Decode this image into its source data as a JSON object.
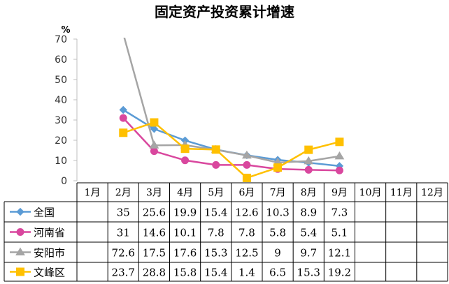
{
  "chart_data": {
    "type": "line",
    "title": "固定资产投资累计增速",
    "y_unit": "%",
    "ylim": [
      0,
      70
    ],
    "y_ticks": [
      "0",
      "10",
      "20",
      "30",
      "40",
      "50",
      "60",
      "70"
    ],
    "categories": [
      "1月",
      "2月",
      "3月",
      "4月",
      "5月",
      "6月",
      "7月",
      "8月",
      "9月",
      "10月",
      "11月",
      "12月"
    ],
    "series": [
      {
        "name": "全国",
        "color": "#5b9bd5",
        "marker": "diamond",
        "values": [
          null,
          35,
          25.6,
          19.9,
          15.4,
          12.6,
          10.3,
          8.9,
          7.3,
          null,
          null,
          null
        ],
        "labels": [
          "",
          "35",
          "25.6",
          "19.9",
          "15.4",
          "12.6",
          "10.3",
          "8.9",
          "7.3",
          "",
          "",
          ""
        ]
      },
      {
        "name": "河南省",
        "color": "#d9479e",
        "marker": "circle",
        "values": [
          null,
          31,
          14.6,
          10.1,
          7.8,
          7.8,
          5.8,
          5.4,
          5.1,
          null,
          null,
          null
        ],
        "labels": [
          "",
          "31",
          "14.6",
          "10.1",
          "7.8",
          "7.8",
          "5.8",
          "5.4",
          "5.1",
          "",
          "",
          ""
        ]
      },
      {
        "name": "安阳市",
        "color": "#a5a5a5",
        "marker": "triangle",
        "values": [
          null,
          72.6,
          17.5,
          17.6,
          15.3,
          12.5,
          9,
          9.7,
          12.1,
          null,
          null,
          null
        ],
        "labels": [
          "",
          "72.6",
          "17.5",
          "17.6",
          "15.3",
          "12.5",
          "9",
          "9.7",
          "12.1",
          "",
          "",
          ""
        ]
      },
      {
        "name": "文峰区",
        "color": "#ffc000",
        "marker": "square",
        "values": [
          null,
          23.7,
          28.8,
          15.8,
          15.4,
          1.4,
          6.5,
          15.3,
          19.2,
          null,
          null,
          null
        ],
        "labels": [
          "",
          "23.7",
          "28.8",
          "15.8",
          "15.4",
          "1.4",
          "6.5",
          "15.3",
          "19.2",
          "",
          "",
          ""
        ]
      }
    ],
    "grid": false,
    "legend": "data-table"
  }
}
